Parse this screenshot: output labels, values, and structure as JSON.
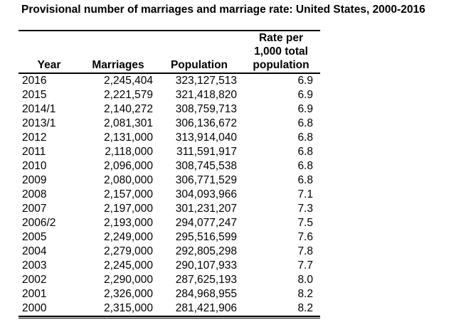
{
  "title": "Provisional number of marriages and marriage rate: United States, 2000-2016",
  "colors": {
    "text": "#000000",
    "background": "#ffffff",
    "rule": "#000000"
  },
  "chart_data": {
    "type": "table",
    "title": "Provisional number of marriages and marriage rate: United States, 2000-2016",
    "columns": [
      "Year",
      "Marriages",
      "Population",
      "Rate per 1,000 total population"
    ],
    "rate_header_lines": [
      "Rate per",
      "1,000 total",
      "population"
    ],
    "rows": [
      [
        "2016",
        "2,245,404",
        "323,127,513",
        "6.9"
      ],
      [
        "2015",
        "2,221,579",
        "321,418,820",
        "6.9"
      ],
      [
        "2014/1",
        "2,140,272",
        "308,759,713",
        "6.9"
      ],
      [
        "2013/1",
        "2,081,301",
        "306,136,672",
        "6.8"
      ],
      [
        "2012",
        "2,131,000",
        "313,914,040",
        "6.8"
      ],
      [
        "2011",
        "2,118,000",
        "311,591,917",
        "6.8"
      ],
      [
        "2010",
        "2,096,000",
        "308,745,538",
        "6.8"
      ],
      [
        "2009",
        "2,080,000",
        "306,771,529",
        "6.8"
      ],
      [
        "2008",
        "2,157,000",
        "304,093,966",
        "7.1"
      ],
      [
        "2007",
        "2,197,000",
        "301,231,207",
        "7.3"
      ],
      [
        "2006/2",
        "2,193,000",
        "294,077,247",
        "7.5"
      ],
      [
        "2005",
        "2,249,000",
        "295,516,599",
        "7.6"
      ],
      [
        "2004",
        "2,279,000",
        "292,805,298",
        "7.8"
      ],
      [
        "2003",
        "2,245,000",
        "290,107,933",
        "7.7"
      ],
      [
        "2002",
        "2,290,000",
        "287,625,193",
        "8.0"
      ],
      [
        "2001",
        "2,326,000",
        "284,968,955",
        "8.2"
      ],
      [
        "2000",
        "2,315,000",
        "281,421,906",
        "8.2"
      ]
    ]
  }
}
